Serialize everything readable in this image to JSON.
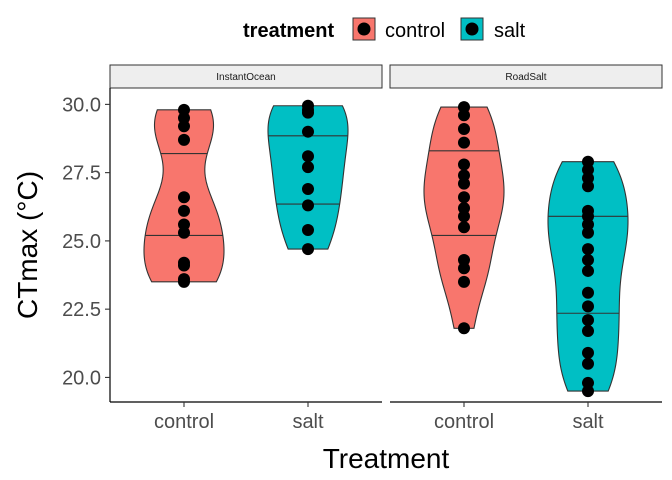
{
  "chart_data": {
    "type": "violin",
    "xlabel": "Treatment",
    "ylabel": "CTmax (°C)",
    "ylim": [
      19.1,
      30.6
    ],
    "yticks": [
      20.0,
      22.5,
      25.0,
      27.5,
      30.0
    ],
    "ytick_labels": [
      "20.0",
      "22.5",
      "25.0",
      "27.5",
      "30.0"
    ],
    "categories": [
      "control",
      "salt"
    ],
    "legend": {
      "title": "treatment",
      "position": "top",
      "items": [
        {
          "label": "control",
          "color": "#F8766D"
        },
        {
          "label": "salt",
          "color": "#00BFC4"
        }
      ]
    },
    "facets": [
      {
        "label": "InstantOcean",
        "groups": [
          {
            "category": "control",
            "color": "#F8766D",
            "quartiles": [
              25.2,
              28.2
            ],
            "points": [
              23.5,
              23.6,
              24.1,
              24.2,
              25.3,
              25.6,
              26.1,
              26.6,
              28.7,
              29.2,
              29.5,
              29.8
            ]
          },
          {
            "category": "salt",
            "color": "#00BFC4",
            "quartiles": [
              26.35,
              28.85
            ],
            "points": [
              24.7,
              25.4,
              26.3,
              26.9,
              27.7,
              28.1,
              29.0,
              29.7,
              29.8,
              29.95
            ]
          }
        ]
      },
      {
        "label": "RoadSalt",
        "groups": [
          {
            "category": "control",
            "color": "#F8766D",
            "quartiles": [
              25.2,
              28.3
            ],
            "points": [
              21.8,
              23.5,
              24.0,
              24.3,
              25.5,
              25.9,
              26.2,
              26.6,
              27.1,
              27.4,
              27.8,
              28.6,
              29.1,
              29.6,
              29.9
            ]
          },
          {
            "category": "salt",
            "color": "#00BFC4",
            "quartiles": [
              22.35,
              25.9
            ],
            "points": [
              19.5,
              19.8,
              20.5,
              20.9,
              21.7,
              22.1,
              22.6,
              23.1,
              23.9,
              24.3,
              24.7,
              25.3,
              25.6,
              25.9,
              26.1,
              27.0,
              27.3,
              27.6,
              27.9
            ]
          }
        ]
      }
    ]
  }
}
